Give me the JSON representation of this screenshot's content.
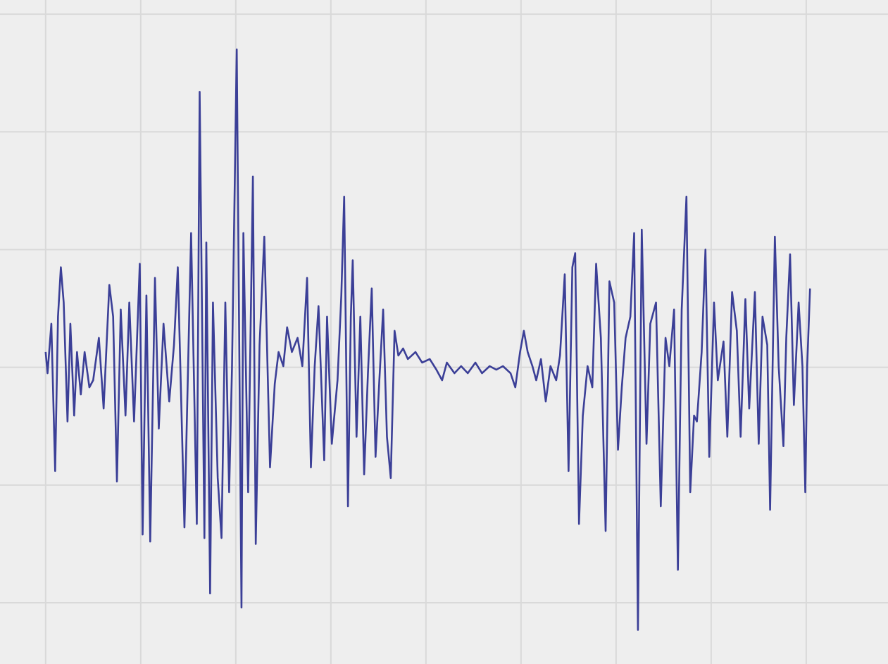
{
  "chart_data": {
    "type": "line",
    "grid": true,
    "grid_color": "#d9d9d9",
    "background": "#eeeeee",
    "xlim": [
      -0.48,
      8.86
    ],
    "xticks": [
      0,
      1,
      2,
      3,
      4,
      5,
      6,
      7,
      8
    ],
    "ylim": [
      -2.52,
      3.12
    ],
    "yticks": [
      -2,
      -1,
      0,
      1,
      2,
      3
    ],
    "x": [
      0.0,
      0.02,
      0.06,
      0.1,
      0.13,
      0.16,
      0.19,
      0.23,
      0.26,
      0.3,
      0.33,
      0.37,
      0.41,
      0.46,
      0.5,
      0.56,
      0.61,
      0.67,
      0.71,
      0.75,
      0.79,
      0.84,
      0.88,
      0.93,
      0.99,
      1.02,
      1.06,
      1.1,
      1.15,
      1.19,
      1.24,
      1.3,
      1.35,
      1.39,
      1.46,
      1.53,
      1.59,
      1.62,
      1.67,
      1.69,
      1.73,
      1.76,
      1.81,
      1.85,
      1.89,
      1.93,
      1.96,
      2.01,
      2.06,
      2.08,
      2.13,
      2.18,
      2.21,
      2.25,
      2.3,
      2.36,
      2.41,
      2.45,
      2.5,
      2.54,
      2.59,
      2.65,
      2.7,
      2.75,
      2.79,
      2.83,
      2.87,
      2.93,
      2.96,
      3.01,
      3.07,
      3.11,
      3.14,
      3.18,
      3.21,
      3.23,
      3.27,
      3.31,
      3.35,
      3.39,
      3.43,
      3.47,
      3.51,
      3.55,
      3.59,
      3.63,
      3.67,
      3.71,
      3.76,
      3.81,
      3.89,
      3.96,
      4.04,
      4.11,
      4.17,
      4.22,
      4.3,
      4.37,
      4.44,
      4.52,
      4.59,
      4.67,
      4.74,
      4.81,
      4.89,
      4.94,
      4.99,
      5.03,
      5.07,
      5.12,
      5.16,
      5.21,
      5.26,
      5.31,
      5.37,
      5.41,
      5.46,
      5.5,
      5.54,
      5.57,
      5.61,
      5.65,
      5.7,
      5.75,
      5.79,
      5.84,
      5.89,
      5.93,
      5.98,
      6.02,
      6.06,
      6.1,
      6.15,
      6.19,
      6.23,
      6.27,
      6.32,
      6.36,
      6.42,
      6.47,
      6.52,
      6.56,
      6.61,
      6.65,
      6.69,
      6.74,
      6.78,
      6.82,
      6.85,
      6.9,
      6.94,
      6.98,
      7.03,
      7.07,
      7.13,
      7.17,
      7.22,
      7.27,
      7.31,
      7.36,
      7.4,
      7.46,
      7.5,
      7.54,
      7.59,
      7.62,
      7.67,
      7.71,
      7.76,
      7.79,
      7.83,
      7.87,
      7.92,
      7.96,
      7.99,
      8.01,
      8.04
    ],
    "series": [
      {
        "color": "#3b3f97",
        "values": [
          0.13,
          -0.05,
          0.37,
          -0.88,
          0.43,
          0.85,
          0.55,
          -0.46,
          0.37,
          -0.41,
          0.13,
          -0.23,
          0.13,
          -0.17,
          -0.11,
          0.25,
          -0.35,
          0.7,
          0.43,
          -0.97,
          0.49,
          -0.41,
          0.55,
          -0.46,
          0.88,
          -1.42,
          0.61,
          -1.48,
          0.76,
          -0.52,
          0.37,
          -0.29,
          0.19,
          0.85,
          -1.36,
          1.14,
          -1.33,
          2.34,
          -1.45,
          1.06,
          -1.92,
          0.55,
          -0.94,
          -1.45,
          0.55,
          -1.06,
          -0.01,
          2.7,
          -2.04,
          1.14,
          -1.06,
          1.62,
          -1.5,
          0.19,
          1.11,
          -0.85,
          -0.14,
          0.13,
          0.01,
          0.34,
          0.13,
          0.25,
          0.01,
          0.76,
          -0.85,
          0.01,
          0.52,
          -0.79,
          0.43,
          -0.65,
          -0.11,
          0.61,
          1.45,
          -1.18,
          0.43,
          0.91,
          -0.59,
          0.43,
          -0.91,
          -0.05,
          0.67,
          -0.76,
          -0.11,
          0.49,
          -0.59,
          -0.94,
          0.31,
          0.1,
          0.16,
          0.07,
          0.13,
          0.04,
          0.07,
          -0.02,
          -0.11,
          0.04,
          -0.05,
          0.01,
          -0.05,
          0.04,
          -0.05,
          0.01,
          -0.02,
          0.01,
          -0.05,
          -0.17,
          0.13,
          0.31,
          0.13,
          0.01,
          -0.11,
          0.07,
          -0.29,
          0.01,
          -0.11,
          0.1,
          0.79,
          -0.88,
          0.85,
          0.97,
          -1.33,
          -0.41,
          0.01,
          -0.17,
          0.88,
          0.25,
          -1.39,
          0.73,
          0.55,
          -0.7,
          -0.17,
          0.25,
          0.43,
          1.14,
          -2.23,
          1.17,
          -0.65,
          0.37,
          0.55,
          -1.18,
          0.25,
          0.01,
          0.49,
          -1.72,
          0.49,
          1.45,
          -1.06,
          -0.41,
          -0.46,
          0.13,
          1.0,
          -0.76,
          0.55,
          -0.11,
          0.22,
          -0.59,
          0.64,
          0.31,
          -0.59,
          0.58,
          -0.35,
          0.64,
          -0.65,
          0.43,
          0.19,
          -1.21,
          1.11,
          0.01,
          -0.67,
          0.25,
          0.96,
          -0.32,
          0.55,
          0.01,
          -1.06,
          0.01,
          0.67
        ]
      }
    ]
  }
}
